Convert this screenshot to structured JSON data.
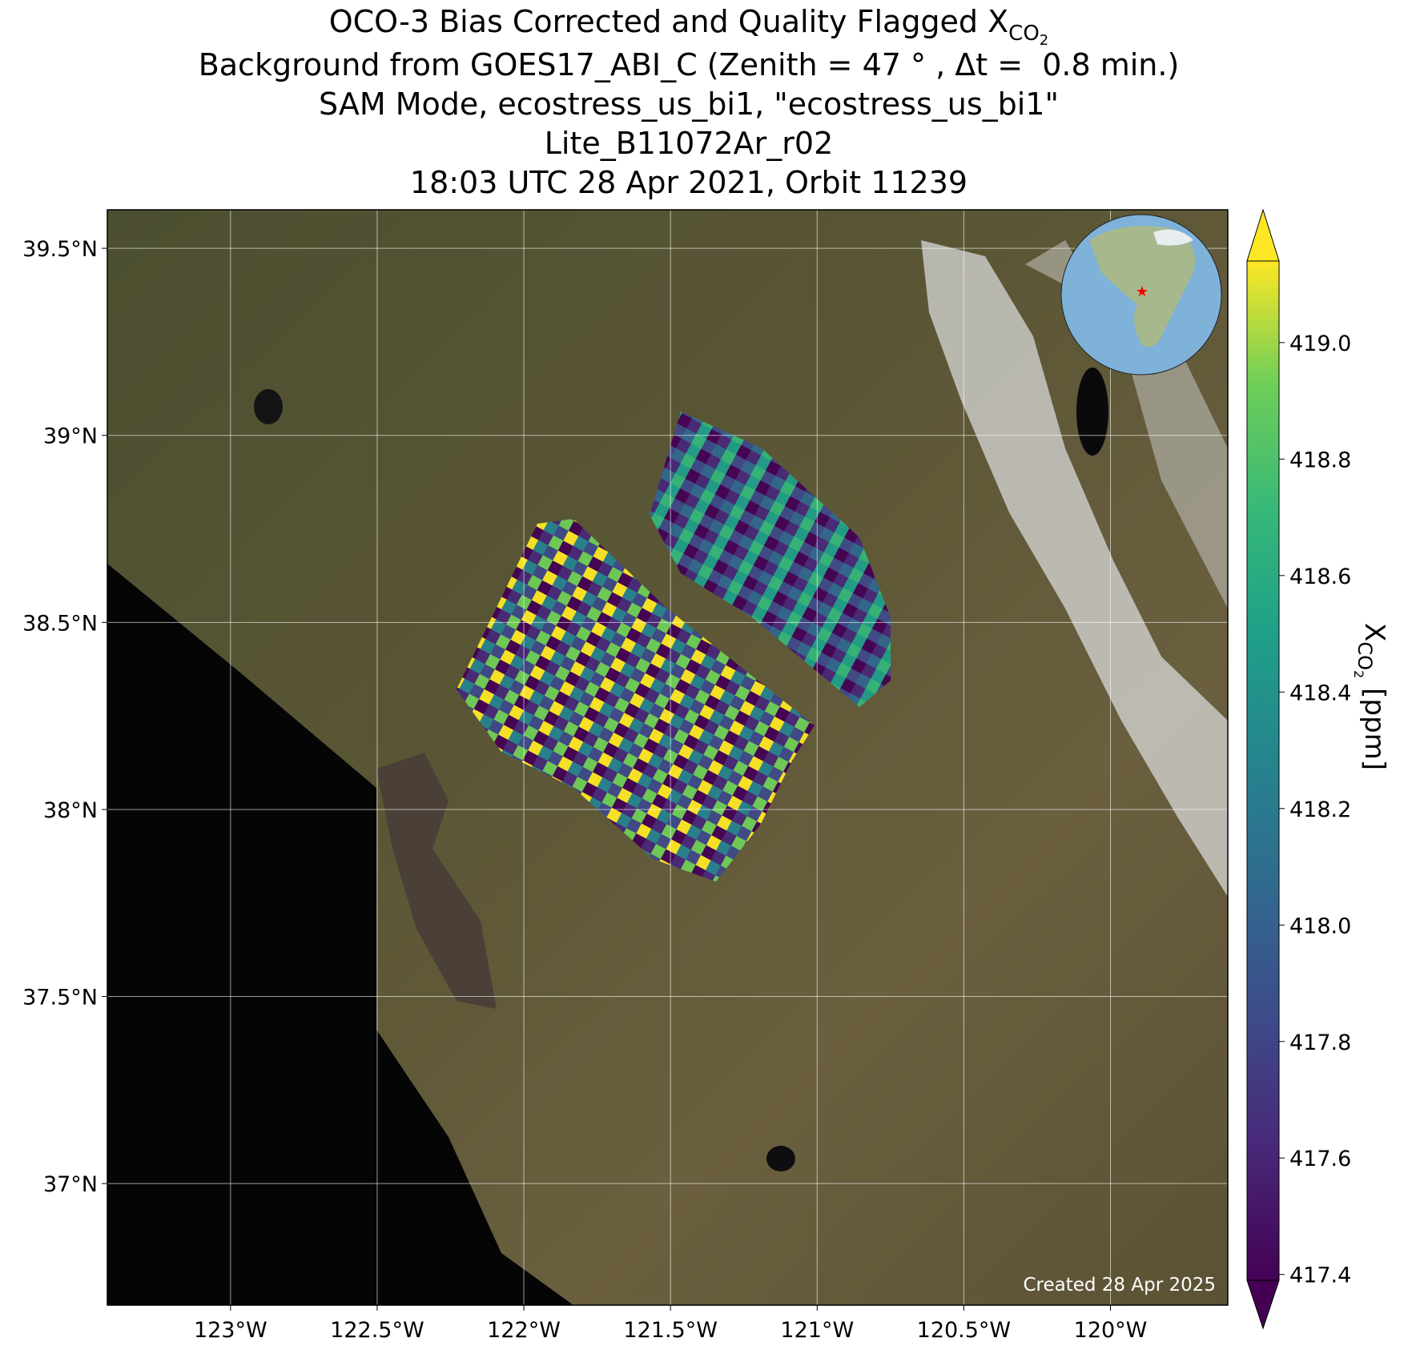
{
  "chart_data": {
    "type": "map",
    "title_main": "OCO-3 Bias Corrected and Quality Flagged X",
    "title_sub": "CO",
    "title_subsub": "2",
    "title_lines": [
      "Background from GOES17_ABI_C (Zenith = 47 ° , Δt =  0.8 min.)",
      "SAM Mode, ecostress_us_bi1, \"ecostress_us_bi1\"",
      "Lite_B11072Ar_r02",
      "18:03 UTC 28 Apr 2021, Orbit 11239"
    ],
    "xlim": [
      -123.42,
      -119.6
    ],
    "ylim": [
      36.675,
      39.603
    ],
    "xticks": [
      {
        "value": -123,
        "label": "123°W"
      },
      {
        "value": -122.5,
        "label": "122.5°W"
      },
      {
        "value": -122,
        "label": "122°W"
      },
      {
        "value": -121.5,
        "label": "121.5°W"
      },
      {
        "value": -121,
        "label": "121°W"
      },
      {
        "value": -120.5,
        "label": "120.5°W"
      },
      {
        "value": -120,
        "label": "120°W"
      }
    ],
    "yticks": [
      {
        "value": 37,
        "label": "37°N"
      },
      {
        "value": 37.5,
        "label": "37.5°N"
      },
      {
        "value": 38,
        "label": "38°N"
      },
      {
        "value": 38.5,
        "label": "38.5°N"
      },
      {
        "value": 39,
        "label": "39°N"
      },
      {
        "value": 39.5,
        "label": "39.5°N"
      }
    ],
    "grid": true,
    "colorbar": {
      "label_main": "X",
      "label_sub": "CO",
      "label_subsub": "2",
      "label_unit": "[ppm]",
      "clim": [
        417.39,
        419.14
      ],
      "ticks": [
        417.4,
        417.6,
        417.8,
        {
          "value": 418.0,
          "label": "418.0"
        },
        418.2,
        418.4,
        418.6,
        418.8,
        {
          "value": 419.0,
          "label": "419.0"
        }
      ]
    },
    "credit": "Created 28 Apr 2025"
  }
}
